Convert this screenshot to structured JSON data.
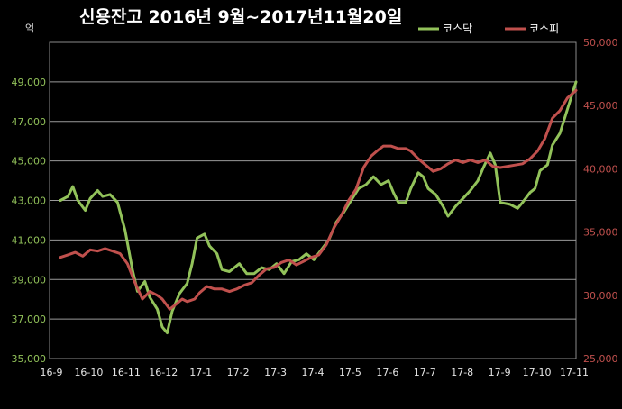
{
  "chart_data": {
    "type": "line",
    "title": "신용잔고 2016년 9월~2017년11월20일",
    "unit_label": "억",
    "x_tick_labels": [
      "16-9",
      "16-10",
      "16-11",
      "16-12",
      "17-1",
      "17-2",
      "17-3",
      "17-4",
      "17-5",
      "17-6",
      "17-7",
      "17-8",
      "17-9",
      "17-10",
      "17-11"
    ],
    "y_left": {
      "min": 35000,
      "max": 51000,
      "ticks": [
        "35,000",
        "37,000",
        "39,000",
        "41,000",
        "43,000",
        "45,000",
        "47,000",
        "49,000"
      ],
      "color": "#92c25a"
    },
    "y_right": {
      "min": 25000,
      "max": 50000,
      "ticks": [
        "25,000",
        "30,000",
        "35,000",
        "40,000",
        "45,000",
        "50,000"
      ],
      "color": "#c0504d"
    },
    "grid": true,
    "legend_position": "top-right",
    "series": [
      {
        "name": "코스닥",
        "axis": "left",
        "color": "#92c25a",
        "points": [
          [
            0,
            43000
          ],
          [
            0.3,
            43200
          ],
          [
            0.5,
            43700
          ],
          [
            0.7,
            43000
          ],
          [
            1.0,
            42500
          ],
          [
            1.2,
            43100
          ],
          [
            1.5,
            43500
          ],
          [
            1.7,
            43200
          ],
          [
            2.0,
            43300
          ],
          [
            2.3,
            42900
          ],
          [
            2.6,
            41500
          ],
          [
            2.9,
            39500
          ],
          [
            3.1,
            38400
          ],
          [
            3.4,
            38900
          ],
          [
            3.6,
            38100
          ],
          [
            3.9,
            37500
          ],
          [
            4.1,
            36600
          ],
          [
            4.3,
            36300
          ],
          [
            4.5,
            37400
          ],
          [
            4.8,
            38300
          ],
          [
            5.1,
            38800
          ],
          [
            5.3,
            39800
          ],
          [
            5.5,
            41100
          ],
          [
            5.8,
            41300
          ],
          [
            6.0,
            40700
          ],
          [
            6.3,
            40300
          ],
          [
            6.5,
            39500
          ],
          [
            6.8,
            39400
          ],
          [
            7.2,
            39800
          ],
          [
            7.5,
            39300
          ],
          [
            7.8,
            39300
          ],
          [
            8.1,
            39600
          ],
          [
            8.4,
            39500
          ],
          [
            8.7,
            39800
          ],
          [
            9.0,
            39300
          ],
          [
            9.3,
            39900
          ],
          [
            9.6,
            40000
          ],
          [
            9.9,
            40300
          ],
          [
            10.2,
            40000
          ],
          [
            10.5,
            40500
          ],
          [
            10.8,
            41000
          ],
          [
            11.1,
            41900
          ],
          [
            11.4,
            42400
          ],
          [
            11.7,
            43000
          ],
          [
            12.0,
            43600
          ],
          [
            12.3,
            43800
          ],
          [
            12.6,
            44200
          ],
          [
            12.9,
            43800
          ],
          [
            13.2,
            44000
          ],
          [
            13.4,
            43400
          ],
          [
            13.6,
            42900
          ],
          [
            13.9,
            42900
          ],
          [
            14.1,
            43600
          ],
          [
            14.4,
            44400
          ],
          [
            14.6,
            44200
          ],
          [
            14.8,
            43600
          ],
          [
            15.1,
            43300
          ],
          [
            15.4,
            42700
          ],
          [
            15.6,
            42200
          ],
          [
            15.9,
            42700
          ],
          [
            16.2,
            43100
          ],
          [
            16.5,
            43500
          ],
          [
            16.8,
            44000
          ],
          [
            17.0,
            44600
          ],
          [
            17.3,
            45400
          ],
          [
            17.5,
            44800
          ],
          [
            17.7,
            42900
          ],
          [
            18.1,
            42800
          ],
          [
            18.4,
            42600
          ],
          [
            18.6,
            42900
          ],
          [
            18.9,
            43400
          ],
          [
            19.1,
            43600
          ],
          [
            19.3,
            44500
          ],
          [
            19.6,
            44800
          ],
          [
            19.8,
            45800
          ],
          [
            20.1,
            46400
          ],
          [
            20.3,
            47200
          ],
          [
            20.5,
            48000
          ],
          [
            20.75,
            49000
          ]
        ]
      },
      {
        "name": "코스피",
        "axis": "right",
        "color": "#c0504d",
        "points": [
          [
            0,
            33000
          ],
          [
            0.3,
            33200
          ],
          [
            0.6,
            33400
          ],
          [
            0.9,
            33100
          ],
          [
            1.2,
            33600
          ],
          [
            1.5,
            33500
          ],
          [
            1.8,
            33700
          ],
          [
            2.1,
            33500
          ],
          [
            2.4,
            33300
          ],
          [
            2.7,
            32500
          ],
          [
            3.0,
            31000
          ],
          [
            3.3,
            29700
          ],
          [
            3.6,
            30300
          ],
          [
            3.9,
            30000
          ],
          [
            4.1,
            29700
          ],
          [
            4.4,
            28900
          ],
          [
            4.6,
            29200
          ],
          [
            4.9,
            29700
          ],
          [
            5.1,
            29500
          ],
          [
            5.4,
            29700
          ],
          [
            5.6,
            30200
          ],
          [
            5.9,
            30700
          ],
          [
            6.2,
            30500
          ],
          [
            6.5,
            30500
          ],
          [
            6.8,
            30300
          ],
          [
            7.1,
            30500
          ],
          [
            7.4,
            30800
          ],
          [
            7.7,
            31000
          ],
          [
            8.0,
            31600
          ],
          [
            8.3,
            32100
          ],
          [
            8.6,
            32200
          ],
          [
            8.9,
            32600
          ],
          [
            9.2,
            32800
          ],
          [
            9.5,
            32400
          ],
          [
            9.8,
            32700
          ],
          [
            10.1,
            33000
          ],
          [
            10.4,
            33200
          ],
          [
            10.7,
            34000
          ],
          [
            11.0,
            35300
          ],
          [
            11.3,
            36300
          ],
          [
            11.6,
            37500
          ],
          [
            11.9,
            38400
          ],
          [
            12.2,
            40100
          ],
          [
            12.5,
            41000
          ],
          [
            12.8,
            41500
          ],
          [
            13.0,
            41800
          ],
          [
            13.3,
            41800
          ],
          [
            13.6,
            41600
          ],
          [
            13.9,
            41600
          ],
          [
            14.1,
            41400
          ],
          [
            14.4,
            40800
          ],
          [
            14.7,
            40300
          ],
          [
            15.0,
            39800
          ],
          [
            15.3,
            40000
          ],
          [
            15.6,
            40400
          ],
          [
            15.9,
            40700
          ],
          [
            16.2,
            40500
          ],
          [
            16.5,
            40700
          ],
          [
            16.8,
            40500
          ],
          [
            17.1,
            40700
          ],
          [
            17.4,
            40200
          ],
          [
            17.7,
            40100
          ],
          [
            18.0,
            40200
          ],
          [
            18.3,
            40300
          ],
          [
            18.6,
            40400
          ],
          [
            18.9,
            40800
          ],
          [
            19.2,
            41400
          ],
          [
            19.5,
            42400
          ],
          [
            19.8,
            44000
          ],
          [
            20.1,
            44600
          ],
          [
            20.4,
            45600
          ],
          [
            20.75,
            46200
          ]
        ]
      }
    ]
  }
}
